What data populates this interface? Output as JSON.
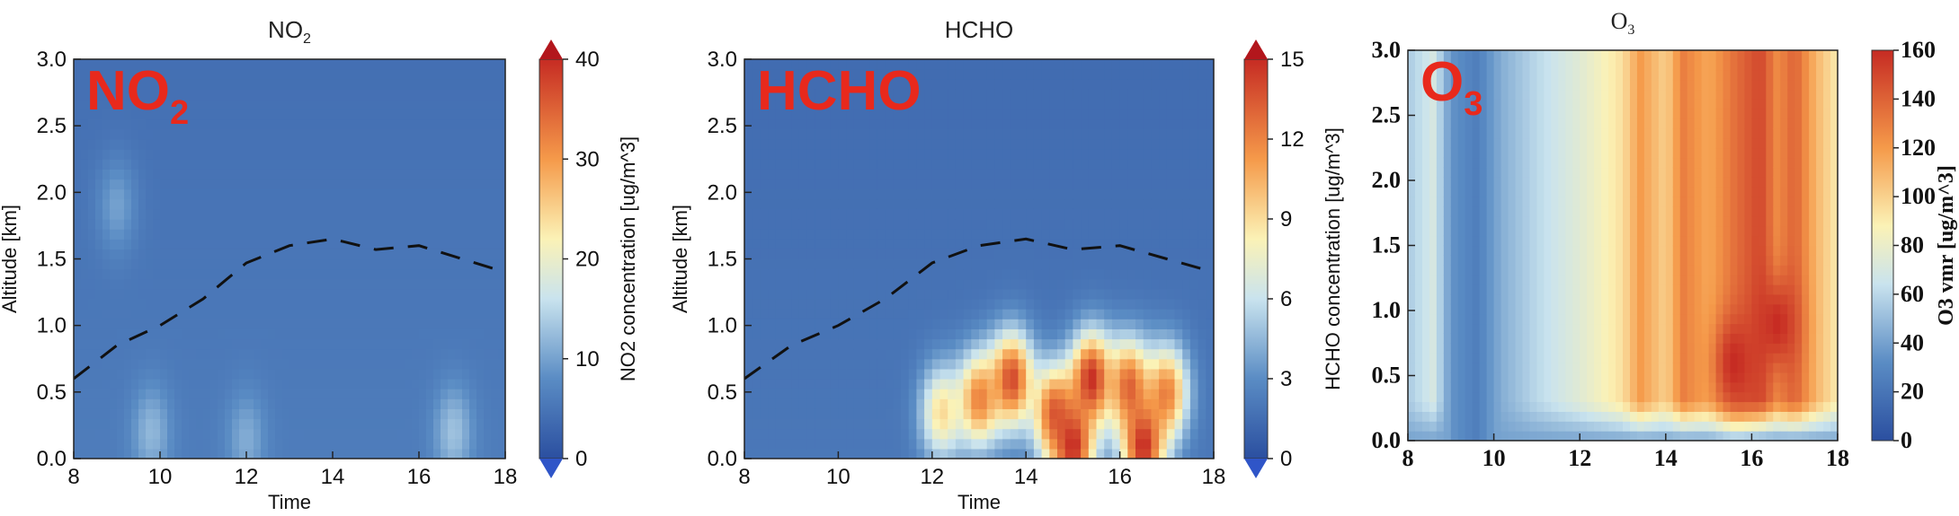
{
  "chart_data": [
    {
      "type": "heatmap",
      "title": "NO2",
      "title_sub": "2",
      "title_main": "NO",
      "overlay_label": "NO",
      "overlay_sub": "2",
      "xlabel": "Time",
      "ylabel": "Altitude [km]",
      "colorbar_label": "NO2 concentration [ug/m^3]",
      "xlim": [
        8,
        18
      ],
      "ylim": [
        0.0,
        3.0
      ],
      "xticks": [
        "8",
        "10",
        "12",
        "14",
        "16",
        "18"
      ],
      "yticks": [
        "0.0",
        "0.5",
        "1.0",
        "1.5",
        "2.0",
        "2.5",
        "3.0"
      ],
      "colorbar_ticks": [
        "0",
        "10",
        "20",
        "30",
        "40"
      ],
      "colorbar_range": [
        0,
        40
      ],
      "boundary_layer_height": {
        "x": [
          8,
          9,
          10,
          11,
          12,
          13,
          14,
          15,
          16,
          17,
          18
        ],
        "y": [
          0.6,
          0.85,
          1.0,
          1.2,
          1.47,
          1.6,
          1.65,
          1.57,
          1.6,
          1.5,
          1.4
        ]
      },
      "background_level": 6,
      "hotspots": [
        {
          "x": 9.0,
          "y": 1.9,
          "value": 10
        },
        {
          "x": 9.8,
          "y": 0.2,
          "value": 12
        },
        {
          "x": 12.0,
          "y": 0.15,
          "value": 11
        },
        {
          "x": 16.8,
          "y": 0.2,
          "value": 13
        }
      ]
    },
    {
      "type": "heatmap",
      "title": "HCHO",
      "overlay_label": "HCHO",
      "xlabel": "Time",
      "ylabel": "Altitude [km]",
      "colorbar_label": "HCHO concentration [ug/m^3]",
      "xlim": [
        8,
        18
      ],
      "ylim": [
        0.0,
        3.0
      ],
      "xticks": [
        "8",
        "10",
        "12",
        "14",
        "16",
        "18"
      ],
      "yticks": [
        "0.0",
        "0.5",
        "1.0",
        "1.5",
        "2.0",
        "2.5",
        "3.0"
      ],
      "colorbar_ticks": [
        "0",
        "3",
        "6",
        "9",
        "12",
        "15"
      ],
      "colorbar_range": [
        0,
        15
      ],
      "boundary_layer_height": {
        "x": [
          8,
          9,
          10,
          11,
          12,
          13,
          14,
          15,
          16,
          17,
          18
        ],
        "y": [
          0.6,
          0.85,
          1.0,
          1.2,
          1.47,
          1.6,
          1.65,
          1.57,
          1.6,
          1.5,
          1.4
        ]
      },
      "background_level": 2,
      "hotspots": [
        {
          "x": 12.2,
          "y": 0.35,
          "value": 9
        },
        {
          "x": 13.0,
          "y": 0.45,
          "value": 12
        },
        {
          "x": 13.7,
          "y": 0.6,
          "value": 14
        },
        {
          "x": 14.6,
          "y": 0.35,
          "value": 13
        },
        {
          "x": 15.4,
          "y": 0.6,
          "value": 15
        },
        {
          "x": 16.2,
          "y": 0.55,
          "value": 13
        },
        {
          "x": 17.0,
          "y": 0.5,
          "value": 12
        },
        {
          "x": 15.0,
          "y": 0.1,
          "value": 15
        },
        {
          "x": 16.5,
          "y": 0.1,
          "value": 15
        }
      ]
    },
    {
      "type": "heatmap",
      "title": "O3",
      "title_main": "O",
      "title_sub": "3",
      "overlay_label": "O",
      "overlay_sub": "3",
      "xlabel": "",
      "ylabel": "",
      "colorbar_label": "O3 vmr [ug/m^3]",
      "xlim": [
        8,
        18
      ],
      "ylim": [
        0.0,
        3.0
      ],
      "xticks": [
        "8",
        "10",
        "12",
        "14",
        "16",
        "18"
      ],
      "yticks": [
        "0.0",
        "0.5",
        "1.0",
        "1.5",
        "2.0",
        "2.5",
        "3.0"
      ],
      "colorbar_ticks": [
        "0",
        "20",
        "40",
        "60",
        "80",
        "100",
        "120",
        "140",
        "160"
      ],
      "colorbar_range": [
        0,
        160
      ],
      "column_profile": [
        {
          "x": 8.0,
          "value": 55
        },
        {
          "x": 8.6,
          "value": 70
        },
        {
          "x": 9.0,
          "value": 35
        },
        {
          "x": 9.6,
          "value": 25
        },
        {
          "x": 10.2,
          "value": 45
        },
        {
          "x": 11.0,
          "value": 60
        },
        {
          "x": 12.0,
          "value": 75
        },
        {
          "x": 13.0,
          "value": 95
        },
        {
          "x": 13.4,
          "value": 120
        },
        {
          "x": 14.0,
          "value": 100
        },
        {
          "x": 14.4,
          "value": 130
        },
        {
          "x": 15.0,
          "value": 115
        },
        {
          "x": 15.6,
          "value": 135
        },
        {
          "x": 16.2,
          "value": 150
        },
        {
          "x": 16.6,
          "value": 125
        },
        {
          "x": 17.0,
          "value": 140
        },
        {
          "x": 17.5,
          "value": 110
        },
        {
          "x": 18.0,
          "value": 90
        }
      ],
      "low_layer_value": 40,
      "hotspots": [
        {
          "x": 15.6,
          "y": 0.6,
          "value": 160
        },
        {
          "x": 16.6,
          "y": 0.9,
          "value": 160
        }
      ]
    }
  ]
}
